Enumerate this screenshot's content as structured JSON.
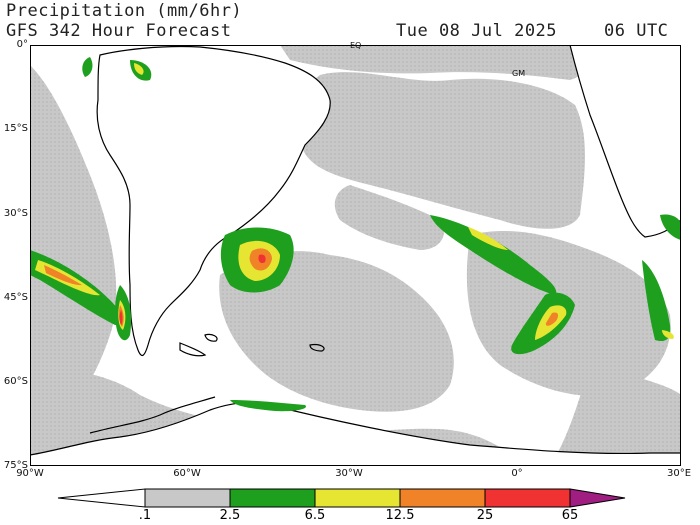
{
  "header": {
    "line1": "Precipitation (mm/6hr)",
    "line2": "GFS 342 Hour Forecast",
    "date": "Tue 08 Jul 2025",
    "time": "06 UTC"
  },
  "map": {
    "lat_labels": [
      "0°",
      "15°S",
      "30°S",
      "45°S",
      "60°S",
      "75°S"
    ],
    "lon_labels": [
      "90°W",
      "60°W",
      "30°W",
      "0°",
      "30°E"
    ],
    "annotations": [
      "EQ",
      "GM"
    ],
    "precip_features": [
      {
        "region": "Patagonia coast",
        "max_category": "25-65"
      },
      {
        "region": "Rio de la Plata / South Atlantic",
        "max_category": "12.5-25"
      },
      {
        "region": "Pacific frontal band 40°S",
        "max_category": "12.5-25"
      },
      {
        "region": "South Atlantic frontal band",
        "max_category": "6.5-12.5"
      },
      {
        "region": "South Africa east coast",
        "max_category": "12.5-25"
      }
    ]
  },
  "colorbar": {
    "labels": [
      ".1",
      "2.5",
      "6.5",
      "12.5",
      "25",
      "65"
    ],
    "colors": [
      "#c8c8c8",
      "#1ea01e",
      "#e6e632",
      "#f08228",
      "#f03232",
      "#a01e82"
    ]
  },
  "colors": {
    "ocean": "#ffffff",
    "light_precip": "#c8c8c8",
    "coast": "#000000"
  }
}
